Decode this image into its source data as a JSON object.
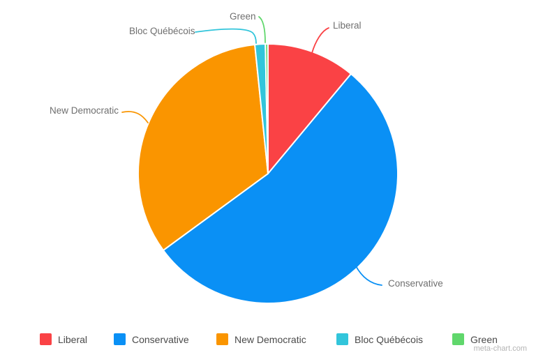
{
  "chart_data": {
    "type": "pie",
    "title": "",
    "labels": [
      "Liberal",
      "Conservative",
      "New Democratic",
      "Bloc Québécois",
      "Green"
    ],
    "values": [
      34,
      166,
      103,
      4,
      1
    ],
    "total": 308,
    "colors": [
      "#FA4245",
      "#0A90F5",
      "#FA9500",
      "#32C5DB",
      "#60D76C"
    ],
    "slice_border_color": "#FFFFFF",
    "start_angle_deg": 0,
    "direction": "clockwise",
    "legend_position": "bottom",
    "callout_labels": [
      "Liberal",
      "Conservative",
      "New Democratic",
      "Bloc Québécois",
      "Green"
    ]
  },
  "watermark": "meta-chart.com"
}
